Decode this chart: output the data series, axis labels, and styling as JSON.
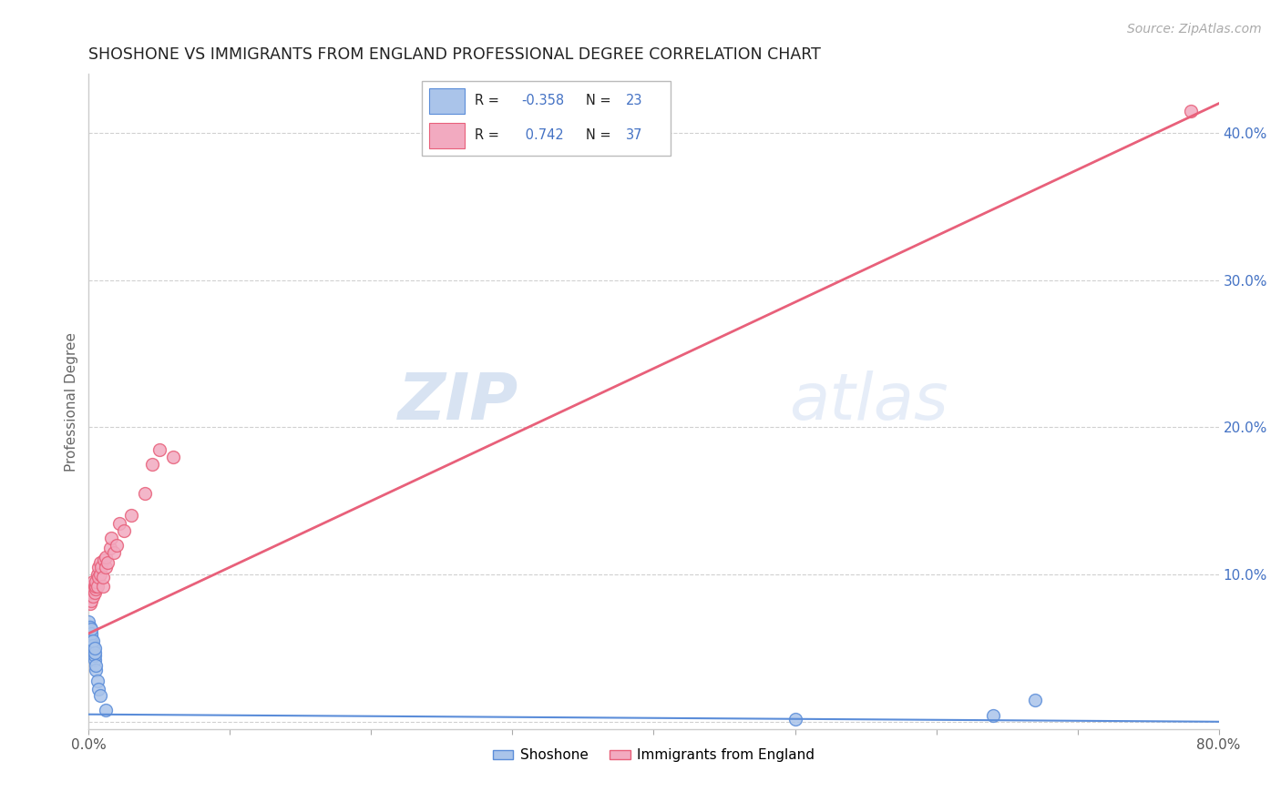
{
  "title": "SHOSHONE VS IMMIGRANTS FROM ENGLAND PROFESSIONAL DEGREE CORRELATION CHART",
  "source_text": "Source: ZipAtlas.com",
  "ylabel": "Professional Degree",
  "xlim": [
    0.0,
    0.8
  ],
  "ylim": [
    -0.005,
    0.44
  ],
  "color_blue": "#aac4ea",
  "color_pink": "#f2aac0",
  "color_blue_line": "#5b8dd9",
  "color_pink_line": "#e8607a",
  "color_title": "#222222",
  "color_source": "#aaaaaa",
  "color_right_axis": "#4472C4",
  "background_color": "#ffffff",
  "grid_color": "#d0d0d0",
  "shoshone_x": [
    0.0,
    0.0,
    0.001,
    0.001,
    0.001,
    0.002,
    0.002,
    0.002,
    0.002,
    0.003,
    0.003,
    0.003,
    0.004,
    0.004,
    0.004,
    0.004,
    0.005,
    0.005,
    0.006,
    0.007,
    0.008,
    0.012,
    0.5,
    0.64,
    0.67
  ],
  "shoshone_y": [
    0.065,
    0.068,
    0.06,
    0.062,
    0.064,
    0.055,
    0.058,
    0.06,
    0.063,
    0.05,
    0.052,
    0.055,
    0.042,
    0.045,
    0.047,
    0.05,
    0.035,
    0.038,
    0.028,
    0.022,
    0.018,
    0.008,
    0.002,
    0.004,
    0.015
  ],
  "england_x": [
    0.001,
    0.001,
    0.002,
    0.002,
    0.002,
    0.003,
    0.003,
    0.003,
    0.004,
    0.004,
    0.005,
    0.005,
    0.005,
    0.006,
    0.006,
    0.007,
    0.007,
    0.008,
    0.008,
    0.009,
    0.01,
    0.01,
    0.011,
    0.012,
    0.012,
    0.013,
    0.015,
    0.016,
    0.018,
    0.02,
    0.022,
    0.025,
    0.03,
    0.04,
    0.045,
    0.05,
    0.06,
    0.78
  ],
  "england_y": [
    0.08,
    0.085,
    0.082,
    0.088,
    0.092,
    0.085,
    0.09,
    0.095,
    0.088,
    0.092,
    0.09,
    0.092,
    0.095,
    0.092,
    0.1,
    0.098,
    0.105,
    0.1,
    0.108,
    0.105,
    0.092,
    0.098,
    0.11,
    0.105,
    0.112,
    0.108,
    0.118,
    0.125,
    0.115,
    0.12,
    0.135,
    0.13,
    0.14,
    0.155,
    0.175,
    0.185,
    0.18,
    0.415
  ],
  "england_line_x": [
    0.0,
    0.8
  ],
  "england_line_y": [
    0.06,
    0.42
  ],
  "shoshone_line_x": [
    0.0,
    0.8
  ],
  "shoshone_line_y": [
    0.005,
    0.0
  ]
}
